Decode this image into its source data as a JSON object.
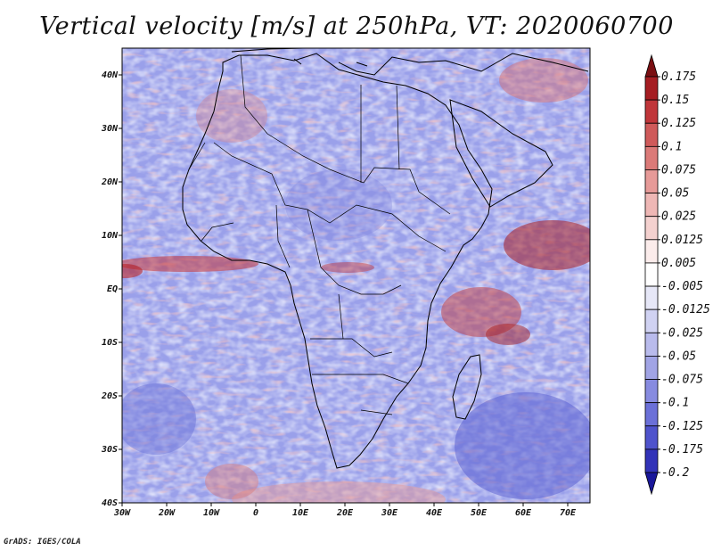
{
  "title": "Vertical velocity [m/s] at 250hPa, VT: 2020060700",
  "credit": "GrADS: IGES/COLA",
  "map": {
    "lon_range": [
      -30,
      75
    ],
    "lat_range": [
      -40,
      45
    ],
    "lon_ticks": [
      {
        "value": -30,
        "label": "30W"
      },
      {
        "value": -20,
        "label": "20W"
      },
      {
        "value": -10,
        "label": "10W"
      },
      {
        "value": 0,
        "label": "0"
      },
      {
        "value": 10,
        "label": "10E"
      },
      {
        "value": 20,
        "label": "20E"
      },
      {
        "value": 30,
        "label": "30E"
      },
      {
        "value": 40,
        "label": "40E"
      },
      {
        "value": 50,
        "label": "50E"
      },
      {
        "value": 60,
        "label": "60E"
      },
      {
        "value": 70,
        "label": "70E"
      }
    ],
    "lat_ticks": [
      {
        "value": 40,
        "label": "40N"
      },
      {
        "value": 30,
        "label": "30N"
      },
      {
        "value": 20,
        "label": "20N"
      },
      {
        "value": 10,
        "label": "10N"
      },
      {
        "value": 0,
        "label": "EQ"
      },
      {
        "value": -10,
        "label": "10S"
      },
      {
        "value": -20,
        "label": "20S"
      },
      {
        "value": -30,
        "label": "30S"
      },
      {
        "value": -40,
        "label": "40S"
      }
    ]
  },
  "colorbar": {
    "labels": [
      "0.175",
      "0.15",
      "0.125",
      "0.1",
      "0.075",
      "0.05",
      "0.025",
      "0.0125",
      "0.005",
      "-0.005",
      "-0.0125",
      "-0.025",
      "-0.05",
      "-0.075",
      "-0.1",
      "-0.125",
      "-0.175",
      "-0.2"
    ],
    "colors": [
      "#7a0f12",
      "#a51d22",
      "#c0363a",
      "#cf5a5a",
      "#db7a78",
      "#e69a98",
      "#eeb7b5",
      "#f4d1cf",
      "#fbeceb",
      "#ffffff",
      "#e6e7f7",
      "#d0d2f2",
      "#b9bbec",
      "#a1a4e5",
      "#878be0",
      "#6b70d8",
      "#4f53cc",
      "#3233b8",
      "#19179a"
    ]
  }
}
